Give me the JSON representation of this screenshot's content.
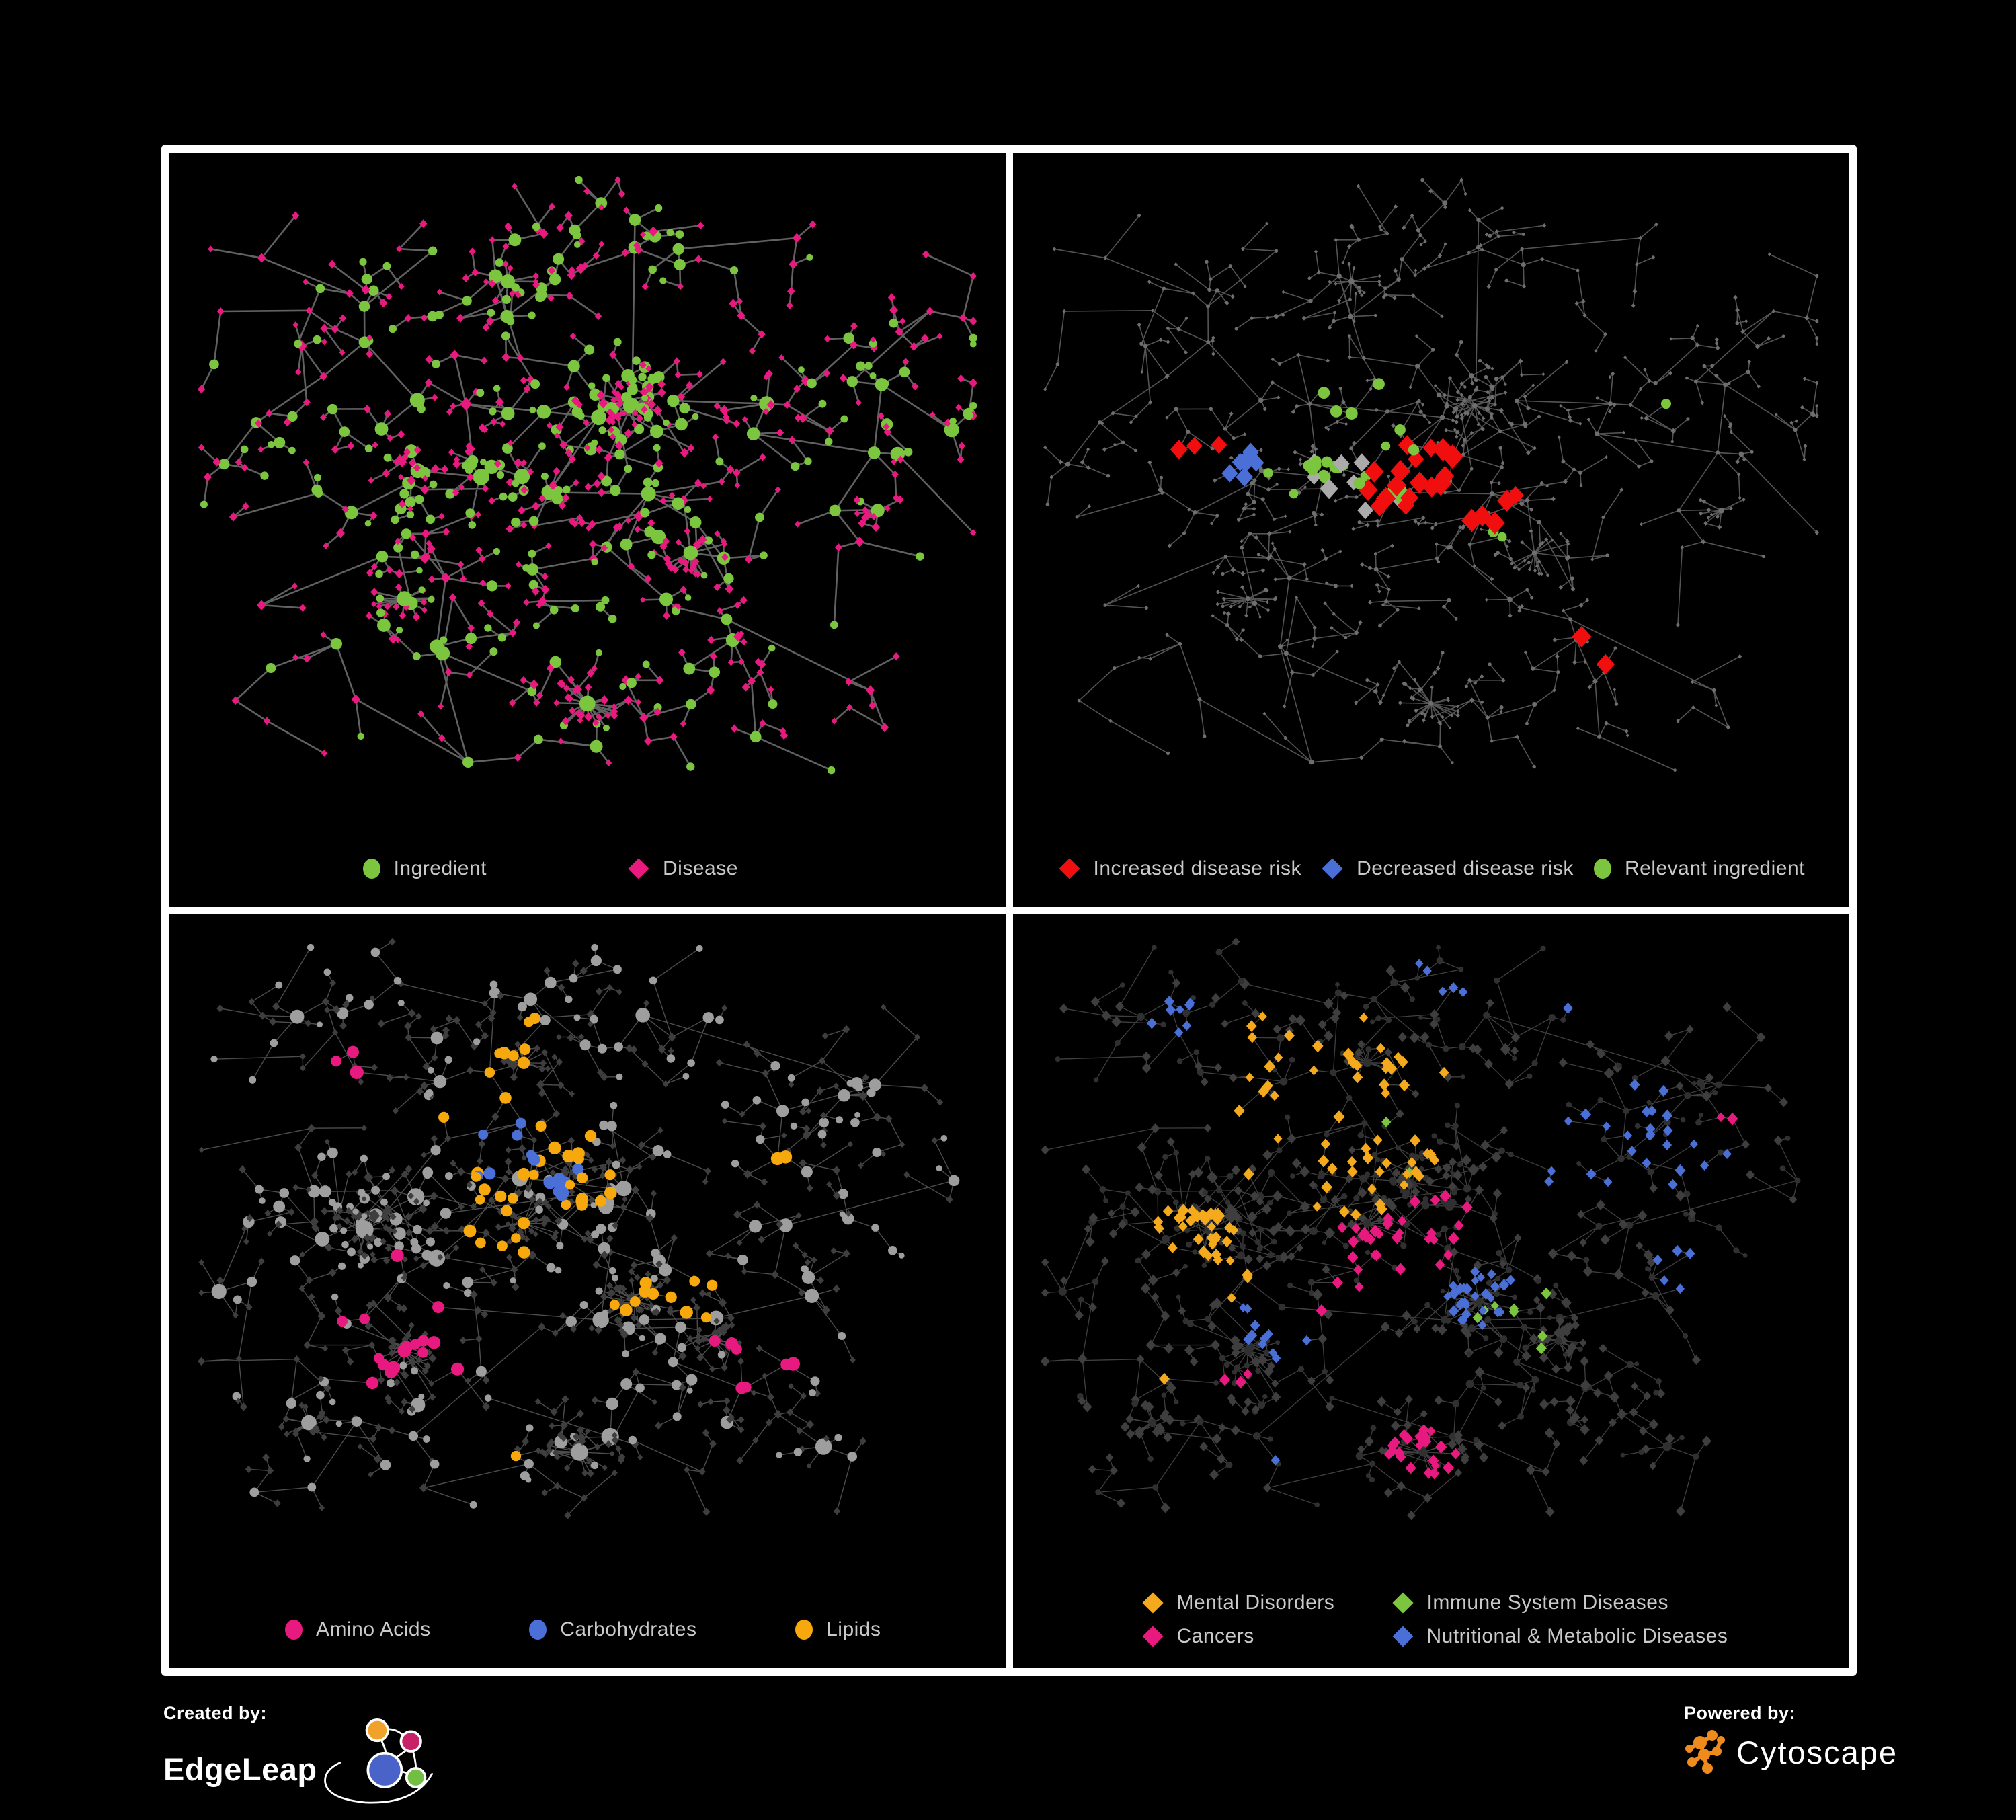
{
  "figure": {
    "background": "#000000",
    "panels": [
      {
        "id": "p1",
        "name": "ingredient-disease-network",
        "topology": "A",
        "legend": {
          "items": [
            {
              "label": "Ingredient",
              "shape": "c",
              "color": "#7CC63F"
            },
            {
              "label": "Disease",
              "shape": "d",
              "color": "#E8197F"
            }
          ]
        },
        "style": {
          "hl_seed": 11,
          "edge": {
            "color": "#696969",
            "width": 2.6,
            "opacity": 0.92
          },
          "circle": {
            "color": "#7CC63F",
            "base": 4.5,
            "perDeg": 1.1,
            "max": 11
          },
          "diamond": {
            "color": "#E8197F",
            "base": 4.6,
            "perDeg": 0.5,
            "max": 8
          },
          "highlights": []
        }
      },
      {
        "id": "p2",
        "name": "disease-risk-network",
        "topology": "A",
        "legend": {
          "items": [
            {
              "label": "Increased disease risk",
              "shape": "d",
              "color": "#F10E0E"
            },
            {
              "label": "Decreased disease risk",
              "shape": "d",
              "color": "#4A6FD6"
            },
            {
              "label": "Relevant ingredient",
              "shape": "c",
              "color": "#7CC63F"
            }
          ]
        },
        "style": {
          "hl_seed": 23,
          "edge": {
            "color": "#585858",
            "width": 1.6,
            "opacity": 0.95
          },
          "circle": {
            "color": "#6E6E6E",
            "base": 2.2,
            "perDeg": 0.25,
            "max": 4
          },
          "diamond": {
            "color": "#6E6E6E",
            "base": 2.6,
            "perDeg": 0.2,
            "max": 4.5
          },
          "highlights": [
            {
              "shape": "d",
              "color": "#F10E0E",
              "count": 30,
              "size": 14,
              "centers": [
                [
                  0.47,
                  0.46,
                  0.1
                ],
                [
                  0.2,
                  0.44,
                  0.06
                ],
                [
                  0.57,
                  0.5,
                  0.07
                ],
                [
                  0.72,
                  0.72,
                  0.05
                ],
                [
                  0.63,
                  0.4,
                  0.03
                ],
                [
                  0.4,
                  0.56,
                  0.05
                ]
              ]
            },
            {
              "shape": "d",
              "color": "#4A6FD6",
              "count": 7,
              "size": 12,
              "centers": [
                [
                  0.26,
                  0.46,
                  0.045
                ],
                [
                  0.83,
                  0.335,
                  0.02
                ]
              ]
            },
            {
              "shape": "d",
              "color": "#ABABAB",
              "count": 8,
              "size": 12,
              "centers": [
                [
                  0.41,
                  0.48,
                  0.16
                ]
              ]
            },
            {
              "shape": "c",
              "color": "#7CC63F",
              "count": 28,
              "size": 8,
              "centers": [
                [
                  0.41,
                  0.44,
                  0.2
                ],
                [
                  0.58,
                  0.55,
                  0.04
                ],
                [
                  0.69,
                  0.72,
                  0.03
                ],
                [
                  0.79,
                  0.35,
                  0.025
                ],
                [
                  0.13,
                  0.49,
                  0.02
                ]
              ]
            }
          ]
        }
      },
      {
        "id": "p3",
        "name": "nutrient-class-network",
        "topology": "B",
        "legend": {
          "items": [
            {
              "label": "Amino Acids",
              "shape": "c",
              "color": "#E8197F"
            },
            {
              "label": "Carbohydrates",
              "shape": "c",
              "color": "#4A6FD6"
            },
            {
              "label": "Lipids",
              "shape": "c",
              "color": "#F7A80D"
            }
          ]
        },
        "style": {
          "hl_seed": 37,
          "edge": {
            "color": "#8D8D8D",
            "width": 1.4,
            "opacity": 0.55
          },
          "circle": {
            "color": "#9E9E9E",
            "base": 4.0,
            "perDeg": 1.1,
            "max": 12
          },
          "diamond": {
            "color": "#3E3E3E",
            "base": 4.5,
            "perDeg": 0.3,
            "max": 6.5
          },
          "highlights": [
            {
              "shape": "c",
              "color": "#F7A80D",
              "count": 72,
              "size": 8.5,
              "centers": [
                [
                  0.49,
                  0.375,
                  0.045
                ],
                [
                  0.41,
                  0.3,
                  0.09
                ],
                [
                  0.38,
                  0.46,
                  0.07
                ],
                [
                  0.56,
                  0.56,
                  0.035
                ],
                [
                  0.645,
                  0.545,
                  0.045
                ],
                [
                  0.43,
                  0.19,
                  0.07
                ],
                [
                  0.42,
                  0.79,
                  0.02
                ],
                [
                  0.75,
                  0.33,
                  0.03
                ]
              ]
            },
            {
              "shape": "c",
              "color": "#E8197F",
              "count": 26,
              "size": 9,
              "centers": [
                [
                  0.25,
                  0.63,
                  0.12
                ],
                [
                  0.7,
                  0.66,
                  0.09
                ],
                [
                  0.21,
                  0.2,
                  0.09
                ],
                [
                  0.93,
                  0.27,
                  0.02
                ],
                [
                  0.66,
                  0.03,
                  0.02
                ],
                [
                  0.25,
                  0.48,
                  0.03
                ]
              ]
            },
            {
              "shape": "c",
              "color": "#4A6FD6",
              "count": 18,
              "size": 8.5,
              "centers": [
                [
                  0.475,
                  0.375,
                  0.05
                ],
                [
                  0.39,
                  0.305,
                  0.1
                ],
                [
                  0.68,
                  0.55,
                  0.03
                ],
                [
                  0.28,
                  0.06,
                  0.015
                ],
                [
                  0.05,
                  0.245,
                  0.015
                ]
              ]
            }
          ]
        }
      },
      {
        "id": "p4",
        "name": "disease-category-network",
        "topology": "B",
        "legend": {
          "items": [
            {
              "label": "Mental Disorders",
              "shape": "d",
              "color": "#F5A91C"
            },
            {
              "label": "Immune System Diseases",
              "shape": "d",
              "color": "#7CC63F"
            },
            {
              "label": "Cancers",
              "shape": "d",
              "color": "#E8197F"
            },
            {
              "label": "Nutritional & Metabolic Diseases",
              "shape": "d",
              "color": "#4A6FD6"
            }
          ]
        },
        "style": {
          "hl_seed": 53,
          "edge": {
            "color": "#808080",
            "width": 1.3,
            "opacity": 0.5
          },
          "circle": {
            "color": "#303030",
            "base": 3.5,
            "perDeg": 0.4,
            "max": 6
          },
          "diamond": {
            "color": "#3E3E3E",
            "base": 6.0,
            "perDeg": 0.3,
            "max": 8
          },
          "highlights": [
            {
              "shape": "d",
              "color": "#F5A91C",
              "count": 100,
              "size": 7.5,
              "centers": [
                [
                  0.2,
                  0.465,
                  0.065
                ],
                [
                  0.255,
                  0.53,
                  0.05
                ],
                [
                  0.295,
                  0.17,
                  0.05
                ],
                [
                  0.14,
                  0.69,
                  0.035
                ],
                [
                  0.38,
                  0.28,
                  0.18
                ]
              ]
            },
            {
              "shape": "d",
              "color": "#E8197F",
              "count": 62,
              "size": 7.5,
              "centers": [
                [
                  0.44,
                  0.5,
                  0.07
                ],
                [
                  0.52,
                  0.445,
                  0.055
                ],
                [
                  0.41,
                  0.575,
                  0.045
                ],
                [
                  0.88,
                  0.27,
                  0.035
                ],
                [
                  0.49,
                  0.8,
                  0.05
                ],
                [
                  0.24,
                  0.67,
                  0.035
                ]
              ]
            },
            {
              "shape": "d",
              "color": "#4A6FD6",
              "count": 90,
              "size": 7,
              "centers": [
                [
                  0.575,
                  0.56,
                  0.045
                ],
                [
                  0.74,
                  0.3,
                  0.08
                ],
                [
                  0.84,
                  0.35,
                  0.045
                ],
                [
                  0.3,
                  0.6,
                  0.045
                ],
                [
                  0.17,
                  0.13,
                  0.05
                ],
                [
                  0.52,
                  0.075,
                  0.045
                ],
                [
                  0.645,
                  0.1,
                  0.035
                ],
                [
                  0.33,
                  0.8,
                  0.045
                ],
                [
                  0.82,
                  0.52,
                  0.035
                ],
                [
                  0.66,
                  0.38,
                  0.03
                ]
              ]
            },
            {
              "shape": "d",
              "color": "#7CC63F",
              "count": 10,
              "size": 7,
              "centers": [
                [
                  0.45,
                  0.35,
                  0.18
                ],
                [
                  0.58,
                  0.6,
                  0.22
                ]
              ]
            }
          ]
        }
      }
    ],
    "networks": {
      "A": {
        "seed": 41,
        "extra": 70,
        "clusters": [
          [
            0.47,
            0.43,
            0.09,
            0.07,
            120
          ],
          [
            0.3,
            0.47,
            0.06,
            0.05,
            80
          ],
          [
            0.55,
            0.36,
            0.03,
            0.03,
            50
          ],
          [
            0.4,
            0.17,
            0.09,
            0.07,
            60
          ],
          [
            0.55,
            0.12,
            0.05,
            0.05,
            30
          ],
          [
            0.17,
            0.24,
            0.06,
            0.06,
            35
          ],
          [
            0.1,
            0.45,
            0.04,
            0.06,
            25
          ],
          [
            0.25,
            0.72,
            0.07,
            0.07,
            50
          ],
          [
            0.42,
            0.62,
            0.07,
            0.06,
            55
          ],
          [
            0.63,
            0.58,
            0.05,
            0.05,
            40
          ],
          [
            0.8,
            0.42,
            0.08,
            0.07,
            45
          ],
          [
            0.78,
            0.25,
            0.09,
            0.06,
            50
          ],
          [
            0.92,
            0.32,
            0.04,
            0.05,
            20
          ],
          [
            0.72,
            0.77,
            0.07,
            0.06,
            45
          ],
          [
            0.5,
            0.8,
            0.04,
            0.04,
            25
          ]
        ],
        "stars": [
          [
            0.5,
            0.815,
            22,
            0.045
          ],
          [
            0.63,
            0.585,
            16,
            0.04
          ],
          [
            0.27,
            0.655,
            14,
            0.035
          ],
          [
            0.555,
            0.36,
            16,
            0.03
          ],
          [
            0.865,
            0.52,
            10,
            0.03
          ],
          [
            0.4,
            0.17,
            12,
            0.035
          ]
        ]
      },
      "B": {
        "seed": 97,
        "extra": 150,
        "clusters": [
          [
            0.22,
            0.45,
            0.05,
            0.045,
            100
          ],
          [
            0.42,
            0.44,
            0.07,
            0.06,
            120
          ],
          [
            0.49,
            0.38,
            0.035,
            0.03,
            60
          ],
          [
            0.35,
            0.2,
            0.08,
            0.07,
            70
          ],
          [
            0.5,
            0.12,
            0.06,
            0.05,
            35
          ],
          [
            0.15,
            0.14,
            0.06,
            0.05,
            35
          ],
          [
            0.08,
            0.5,
            0.04,
            0.07,
            25
          ],
          [
            0.56,
            0.56,
            0.04,
            0.035,
            45
          ],
          [
            0.27,
            0.64,
            0.05,
            0.05,
            45
          ],
          [
            0.2,
            0.78,
            0.07,
            0.05,
            40
          ],
          [
            0.49,
            0.79,
            0.05,
            0.04,
            35
          ],
          [
            0.66,
            0.62,
            0.05,
            0.05,
            40
          ],
          [
            0.74,
            0.28,
            0.08,
            0.07,
            55
          ],
          [
            0.85,
            0.3,
            0.05,
            0.05,
            30
          ],
          [
            0.8,
            0.47,
            0.06,
            0.05,
            35
          ],
          [
            0.7,
            0.76,
            0.06,
            0.05,
            45
          ]
        ],
        "stars": [
          [
            0.49,
            0.795,
            24,
            0.045
          ],
          [
            0.56,
            0.565,
            24,
            0.04
          ],
          [
            0.27,
            0.64,
            20,
            0.04
          ],
          [
            0.22,
            0.455,
            26,
            0.035
          ],
          [
            0.42,
            0.445,
            22,
            0.04
          ],
          [
            0.66,
            0.625,
            16,
            0.035
          ],
          [
            0.15,
            0.75,
            12,
            0.03
          ],
          [
            0.42,
            0.2,
            14,
            0.035
          ]
        ]
      }
    },
    "footer": {
      "created_by": {
        "label": "Created by:",
        "brand": "EdgeLeap"
      },
      "powered_by": {
        "label": "Powered by:",
        "brand": "Cytoscape"
      },
      "edgeleap_logo_colors": {
        "orange": "#F0A22B",
        "pink": "#C92168",
        "blue": "#4A63C8",
        "green": "#72BF44"
      },
      "cytoscape_orange": "#EF8B1D"
    }
  }
}
